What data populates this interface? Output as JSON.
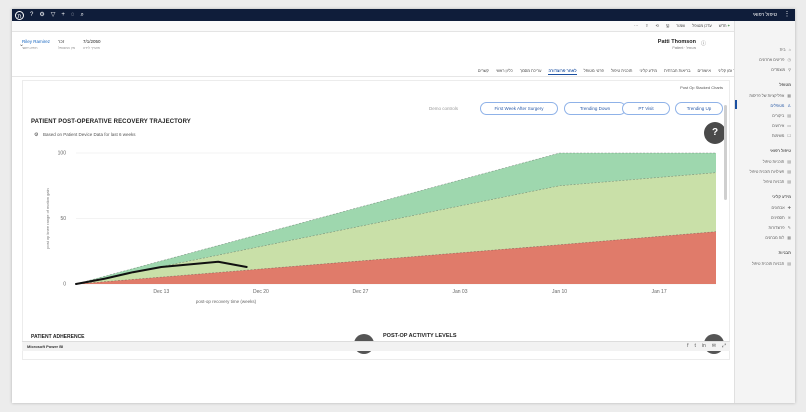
{
  "topbar": {
    "app_title": "טיפול רפואי",
    "left_icons": [
      "user-icon",
      "help-icon",
      "gear-icon",
      "filter-icon",
      "plus-icon",
      "lightbulb-icon",
      "search-icon"
    ],
    "left_glyphs": [
      "?",
      "⚙",
      "▽",
      "+",
      "◌",
      "⌕"
    ],
    "avatar_text": "ת"
  },
  "cmdbar": {
    "commands": [
      "חדש",
      "עדכן מטופל",
      "שמור",
      "",
      "",
      "",
      ""
    ]
  },
  "record": {
    "name": "Patti Thomson",
    "subtitle": "Patient · מטופל",
    "fields": [
      {
        "value": "7/1/2050",
        "label": "תאריך לידה"
      },
      {
        "value": "זכר",
        "label": "מין המטופל"
      },
      {
        "value": "Riley Ramirez",
        "label": "רופא ראשי",
        "link": true
      }
    ]
  },
  "tabs": [
    "סיכום",
    "ציר זמן קליני",
    "אישורים",
    "בריאות חברתית",
    "מידע קליני",
    "תוכנית טיפול",
    "פרטי מטופל",
    "לאחר פרוצדורה",
    "עריכת מסמך",
    "כליון ראשי",
    "קשרים"
  ],
  "active_tab_index": 7,
  "report": {
    "corner_tag": "Post Op Stacked Charts",
    "chart_title": "PATIENT POST-OPERATIVE RECOVERY TRAJECTORY",
    "chart_subtitle": "Based on Patient Device Data for last 6 weeks",
    "demo_label": "Demo controls",
    "demo_buttons": [
      "First Week After Surgery",
      "Trending Down",
      "PT Visit",
      "Trending Up"
    ],
    "help": "?",
    "section_left": "PATIENT ADHERENCE",
    "section_right": "POST-OP ACTIVITY LEVELS"
  },
  "chart_data": {
    "type": "area",
    "xlabel": "post-op recovery time (weeks)",
    "ylabel": "post op knee range of motion gain",
    "ylim": [
      0,
      100
    ],
    "yticks": [
      0,
      50,
      100
    ],
    "xticks": [
      "Dec 13",
      "Dec 20",
      "Dec 27",
      "Jan 03",
      "Jan 10",
      "Jan 17"
    ],
    "x": [
      "Dec 07",
      "Jan 10",
      "Jan 21"
    ],
    "bands": [
      {
        "name": "low",
        "color": "#e07b6a",
        "upper": [
          0,
          30,
          40
        ]
      },
      {
        "name": "mid",
        "color": "#c9e0a8",
        "upper": [
          0,
          75,
          85
        ]
      },
      {
        "name": "high",
        "color": "#9ed7ae",
        "upper": [
          0,
          100,
          100
        ]
      }
    ],
    "patient_series": {
      "name": "patient",
      "color": "#111111",
      "x": [
        "Dec 07",
        "Dec 09",
        "Dec 11",
        "Dec 13",
        "Dec 15",
        "Dec 17",
        "Dec 19"
      ],
      "values": [
        0,
        4,
        9,
        13,
        15,
        17,
        13
      ]
    }
  },
  "powerbi": {
    "label": "Microsoft Power BI",
    "icons": [
      "facebook-icon",
      "twitter-icon",
      "linkedin-icon",
      "email-icon",
      "fullscreen-icon"
    ],
    "glyphs": [
      "f",
      "t",
      "in",
      "✉",
      "⤢"
    ]
  },
  "sidenav": {
    "items": [
      {
        "text": "בית",
        "section": false
      },
      {
        "text": "פריטים אחרונים",
        "section": false
      },
      {
        "text": "מוצמדים",
        "section": false
      },
      {
        "text": "מטופל",
        "section": true
      },
      {
        "text": "אפליקציות של פריסות",
        "section": false
      },
      {
        "text": "מטופלים",
        "section": false,
        "active": true
      },
      {
        "text": "ביקורים",
        "section": false
      },
      {
        "text": "אירועים",
        "section": false
      },
      {
        "text": "משימות",
        "section": false
      },
      {
        "text": "טיפול רפואי",
        "section": true
      },
      {
        "text": "תוכניות טיפול",
        "section": false
      },
      {
        "text": "פעילויות תוכנית טיפול",
        "section": false
      },
      {
        "text": "תבניות טיפול",
        "section": false
      },
      {
        "text": "מידע קליני",
        "section": true
      },
      {
        "text": "אבחונים",
        "section": false
      },
      {
        "text": "תסמינים",
        "section": false
      },
      {
        "text": "פרוצדורות",
        "section": false
      },
      {
        "text": "לוח מבחנים",
        "section": false
      },
      {
        "text": "תבניות",
        "section": true
      },
      {
        "text": "תבניות תוכנית טיפול",
        "section": false
      }
    ]
  }
}
